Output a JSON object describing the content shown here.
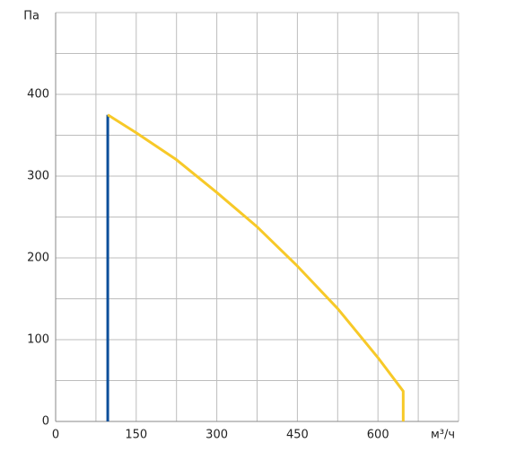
{
  "chart_data": {
    "type": "line",
    "x_label": "м³/ч",
    "y_label": "Па",
    "xlim": [
      0,
      750
    ],
    "ylim": [
      0,
      500
    ],
    "xticks": [
      0,
      150,
      300,
      450,
      600
    ],
    "yticks": [
      0,
      100,
      200,
      300,
      400
    ],
    "x_minor_ticks": [
      75,
      225,
      375,
      525,
      675,
      750
    ],
    "y_minor_ticks": [
      50,
      150,
      250,
      350,
      450,
      500
    ],
    "grid": true,
    "series": [
      {
        "color": "#0d4f9a",
        "x": [
          97,
          97
        ],
        "values": [
          0,
          375
        ]
      },
      {
        "color": "#f7c928",
        "x": [
          97,
          150,
          225,
          300,
          375,
          450,
          525,
          600,
          647,
          647
        ],
        "values": [
          375,
          353,
          320,
          280,
          238,
          190,
          138,
          78,
          37,
          0
        ]
      }
    ]
  }
}
